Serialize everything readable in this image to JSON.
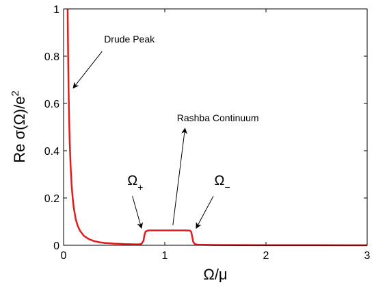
{
  "chart_data": {
    "type": "line",
    "title": "",
    "xlabel": "Ω/μ",
    "ylabel": "Re σ(Ω)/e",
    "ylabel_sup": "2",
    "xlim": [
      0,
      3
    ],
    "ylim": [
      0,
      1
    ],
    "xticks": [
      0,
      1,
      2,
      3
    ],
    "xtick_labels": [
      "0",
      "1",
      "2",
      "3"
    ],
    "yticks": [
      0,
      0.2,
      0.4,
      0.6,
      0.8,
      1
    ],
    "ytick_labels": [
      "0",
      "0.2",
      "0.4",
      "0.6",
      "0.8",
      "1"
    ],
    "grid": false,
    "legend": "none",
    "series": [
      {
        "color": "#e41a1c",
        "x": [
          0.04,
          0.045,
          0.05,
          0.055,
          0.06,
          0.07,
          0.08,
          0.09,
          0.1,
          0.12,
          0.14,
          0.16,
          0.2,
          0.25,
          0.3,
          0.35,
          0.4,
          0.5,
          0.6,
          0.7,
          0.75,
          0.77,
          0.79,
          0.8,
          0.81,
          0.83,
          0.85,
          0.9,
          1.0,
          1.1,
          1.2,
          1.25,
          1.26,
          1.27,
          1.28,
          1.3,
          1.35,
          1.5,
          2.0,
          2.5,
          3.0
        ],
        "y": [
          1.0,
          0.8,
          0.64,
          0.53,
          0.44,
          0.33,
          0.25,
          0.2,
          0.16,
          0.11,
          0.082,
          0.063,
          0.04,
          0.026,
          0.018,
          0.013,
          0.01,
          0.007,
          0.005,
          0.004,
          0.004,
          0.006,
          0.02,
          0.045,
          0.058,
          0.062,
          0.063,
          0.063,
          0.063,
          0.063,
          0.063,
          0.062,
          0.058,
          0.04,
          0.015,
          0.004,
          0.002,
          0.001,
          0.0005,
          0.0002,
          0.0001
        ]
      }
    ],
    "annotations": [
      {
        "id": "drude",
        "text": "Drude Peak",
        "text_x": 0.4,
        "text_y": 0.858,
        "tail_x": 0.38,
        "tail_y": 0.82,
        "head_x": 0.095,
        "head_y": 0.665
      },
      {
        "id": "rashba",
        "text": "Rashba Continuum",
        "text_x": 1.12,
        "text_y": 0.525,
        "tail_x": 1.08,
        "tail_y": 0.085,
        "head_x": 1.2,
        "head_y": 0.495
      }
    ],
    "omega_labels": [
      {
        "id": "plus",
        "symbol": "Ω",
        "sub": "+",
        "text_x": 0.63,
        "text_y": 0.255,
        "tail_x": 0.68,
        "tail_y": 0.208,
        "head_x": 0.77,
        "head_y": 0.072
      },
      {
        "id": "minus",
        "symbol": "Ω",
        "sub": "−",
        "text_x": 1.49,
        "text_y": 0.255,
        "tail_x": 1.48,
        "tail_y": 0.208,
        "head_x": 1.31,
        "head_y": 0.072
      }
    ]
  }
}
